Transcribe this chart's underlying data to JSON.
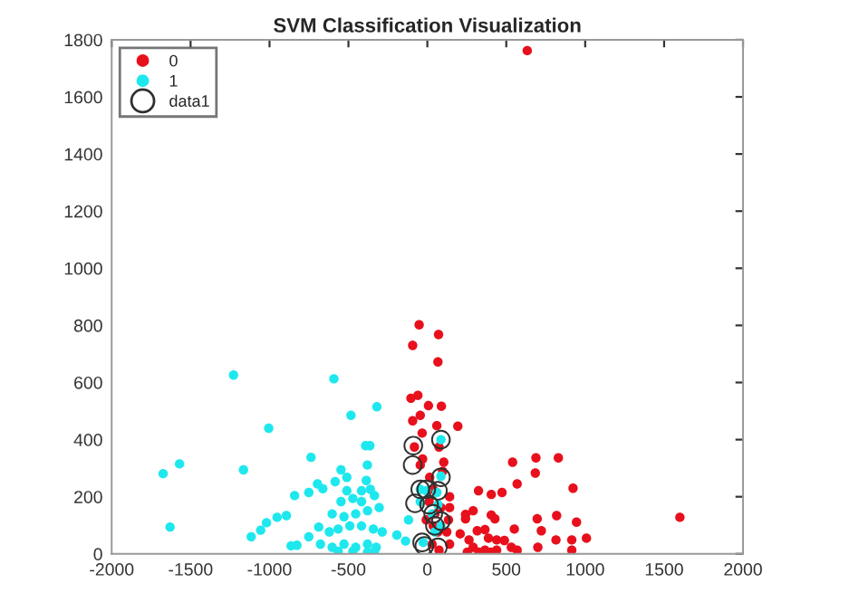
{
  "chart_data": {
    "type": "scatter",
    "title": "SVM Classification Visualization",
    "xlim": [
      -2000,
      2000
    ],
    "xticks": [
      -2000,
      -1500,
      -1000,
      -500,
      0,
      500,
      1000,
      1500,
      2000
    ],
    "ylim": [
      0,
      1800
    ],
    "yticks": [
      0,
      200,
      400,
      600,
      800,
      1000,
      1200,
      1400,
      1600,
      1800
    ],
    "grid": false,
    "legend": "top left",
    "marker": "circle",
    "series": [
      {
        "name": "0",
        "color": "#e8101c",
        "x": [
          633,
          1600,
          -52,
          71,
          -93,
          67,
          -60,
          -104,
          7,
          89,
          -45,
          -93,
          60,
          193,
          -33,
          -82,
          74,
          -30,
          -45,
          104,
          97,
          540,
          688,
          830,
          684,
          569,
          324,
          405,
          473,
          923,
          242,
          242,
          290,
          405,
          428,
          696,
          819,
          945,
          551,
          722,
          141,
          141,
          134,
          123,
          141,
          208,
          264,
          316,
          365,
          387,
          439,
          488,
          290,
          365,
          439,
          532,
          569,
          700,
          815,
          915,
          1008,
          915,
          253,
          327,
          402,
          15,
          37,
          48,
          67,
          30,
          74,
          -7,
          11,
          86,
          37
        ],
        "values": [
          1762,
          128,
          802,
          768,
          730,
          672,
          555,
          545,
          519,
          517,
          485,
          466,
          449,
          447,
          423,
          374,
          374,
          332,
          311,
          321,
          289,
          321,
          336,
          336,
          283,
          245,
          221,
          208,
          215,
          230,
          138,
          123,
          151,
          136,
          123,
          123,
          134,
          111,
          87,
          81,
          200,
          162,
          119,
          77,
          34,
          70,
          49,
          81,
          85,
          55,
          49,
          47,
          23,
          13,
          13,
          23,
          13,
          23,
          49,
          49,
          55,
          13,
          6,
          6,
          6,
          268,
          226,
          140,
          77,
          34,
          13,
          119,
          183,
          162,
          98
        ]
      },
      {
        "name": "1",
        "color": "#1ee8ee",
        "x": [
          -1228,
          -592,
          -484,
          -320,
          -1005,
          -391,
          -364,
          -737,
          -1570,
          -1674,
          -1165,
          -1630,
          -547,
          -380,
          -696,
          -584,
          -841,
          -751,
          -662,
          -510,
          -417,
          -361,
          -893,
          -952,
          -1019,
          -1056,
          -1116,
          -863,
          -826,
          -751,
          -688,
          -603,
          -528,
          -454,
          -379,
          -305,
          -621,
          -565,
          -491,
          -417,
          -342,
          -286,
          -677,
          -603,
          -528,
          -454,
          -379,
          -324,
          -565,
          -472,
          -379,
          -335,
          -547,
          -472,
          -417,
          -335,
          -510,
          -387,
          -193,
          -119,
          -138,
          86,
          86,
          -45,
          -7,
          60,
          -45,
          30,
          86,
          -26,
          48,
          67
        ],
        "values": [
          626,
          613,
          485,
          515,
          440,
          379,
          379,
          338,
          315,
          281,
          294,
          94,
          294,
          311,
          245,
          253,
          204,
          215,
          228,
          221,
          221,
          226,
          134,
          128,
          109,
          83,
          60,
          28,
          30,
          60,
          94,
          140,
          130,
          140,
          151,
          162,
          77,
          87,
          98,
          98,
          87,
          77,
          34,
          23,
          34,
          23,
          34,
          23,
          9,
          9,
          6,
          9,
          183,
          194,
          183,
          204,
          268,
          257,
          66,
          119,
          45,
          400,
          272,
          226,
          221,
          215,
          183,
          140,
          98,
          40,
          77,
          172
        ]
      },
      {
        "name": "data1",
        "color": "#303030",
        "x": [
          -89,
          -93,
          86,
          -45,
          67,
          -78,
          37,
          48,
          86,
          -33,
          -19,
          67,
          86,
          -7,
          11
        ],
        "values": [
          379,
          311,
          400,
          226,
          221,
          177,
          140,
          98,
          115,
          40,
          28,
          23,
          268,
          226,
          172
        ]
      }
    ]
  }
}
